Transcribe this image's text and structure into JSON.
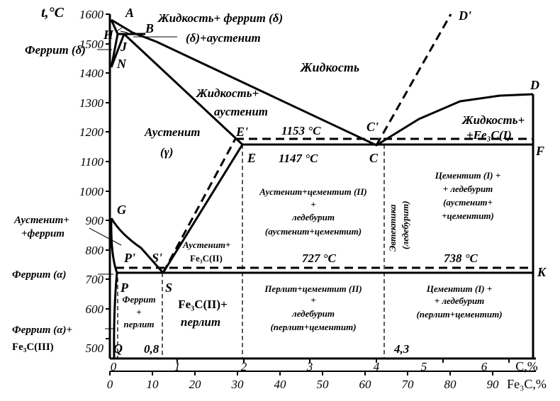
{
  "axes": {
    "y_title": "t,°C",
    "y_ticks": [
      "1600",
      "1500",
      "1400",
      "1300",
      "1200",
      "1100",
      "1000",
      "900",
      "800",
      "700",
      "600",
      "500"
    ],
    "x_top_title": "C,%",
    "x_top_ticks": [
      "0",
      "1",
      "2",
      "3",
      "4",
      "5",
      "6"
    ],
    "x_bottom_title": "Fe₃C,%",
    "x_bottom_ticks": [
      "0",
      "10",
      "20",
      "30",
      "40",
      "50",
      "60",
      "70",
      "80",
      "90"
    ]
  },
  "points": {
    "A": "A",
    "H": "H",
    "B": "B",
    "J": "J",
    "N": "N",
    "G": "G",
    "P": "P",
    "P_prime": "P'",
    "S": "S",
    "S_prime": "S'",
    "Q": "Q",
    "E": "E",
    "E_prime": "E'",
    "C": "C",
    "C_prime": "C'",
    "D": "D",
    "D_prime": "D'",
    "F": "F",
    "K": "K"
  },
  "temperatures": {
    "t1153": "1153 °C",
    "t1147": "1147 °C",
    "t727": "727 °C",
    "t738": "738 °C"
  },
  "compositions": {
    "c08": "0,8",
    "c43": "4,3"
  },
  "regions": {
    "liquid_ferrite_delta": "Жидкость+ феррит (δ)",
    "delta_austenite": "(δ)+аустенит",
    "ferrite_delta": "Феррит (δ)",
    "liquid": "Жидкость",
    "liquid_austenite_1": "Жидкость+",
    "liquid_austenite_2": "аустенит",
    "liquid_fe3c_1": "Жидкость+",
    "liquid_fe3c_2": "+Fe₃C(I)",
    "austenite_1": "Аустенит",
    "austenite_2": "(γ)",
    "austenite_ferrite_1": "Аустенит+",
    "austenite_ferrite_2": "+феррит",
    "ferrite_alpha": "Феррит (α)",
    "ferrite_alpha_fe3c_1": "Феррит (α)+",
    "ferrite_alpha_fe3c_2": "Fe₃C(III)",
    "austenite_fe3c2_1": "Аустенит+",
    "austenite_fe3c2_2": "Fe₃C(II)",
    "aust_cem_led_1": "Аустенит+цементит (II)",
    "aust_cem_led_2": "+",
    "aust_cem_led_3": "ледебурит",
    "aust_cem_led_4": "(аустенит+цементит)",
    "eutectic_1": "Эвтектика",
    "eutectic_2": "(ледебурит)",
    "cem1_led_upper_1": "Цементит (I) +",
    "cem1_led_upper_2": "+ ледебурит",
    "cem1_led_upper_3": "(аустенит+",
    "cem1_led_upper_4": "+цементит)",
    "ferrite_pearlite_1": "Феррит",
    "ferrite_pearlite_2": "+",
    "ferrite_pearlite_3": "перлит",
    "fe3c2_pearlite_1": "Fe₃C(II)+",
    "fe3c2_pearlite_2": "перлит",
    "pearl_cem_led_1": "Перлит+цементит (II)",
    "pearl_cem_led_2": "+",
    "pearl_cem_led_3": "ледебурит",
    "pearl_cem_led_4": "(перлит+цементит)",
    "cem1_led_lower_1": "Цементит (I) +",
    "cem1_led_lower_2": "+ ледебурит",
    "cem1_led_lower_3": "(перлит+цементит)"
  }
}
